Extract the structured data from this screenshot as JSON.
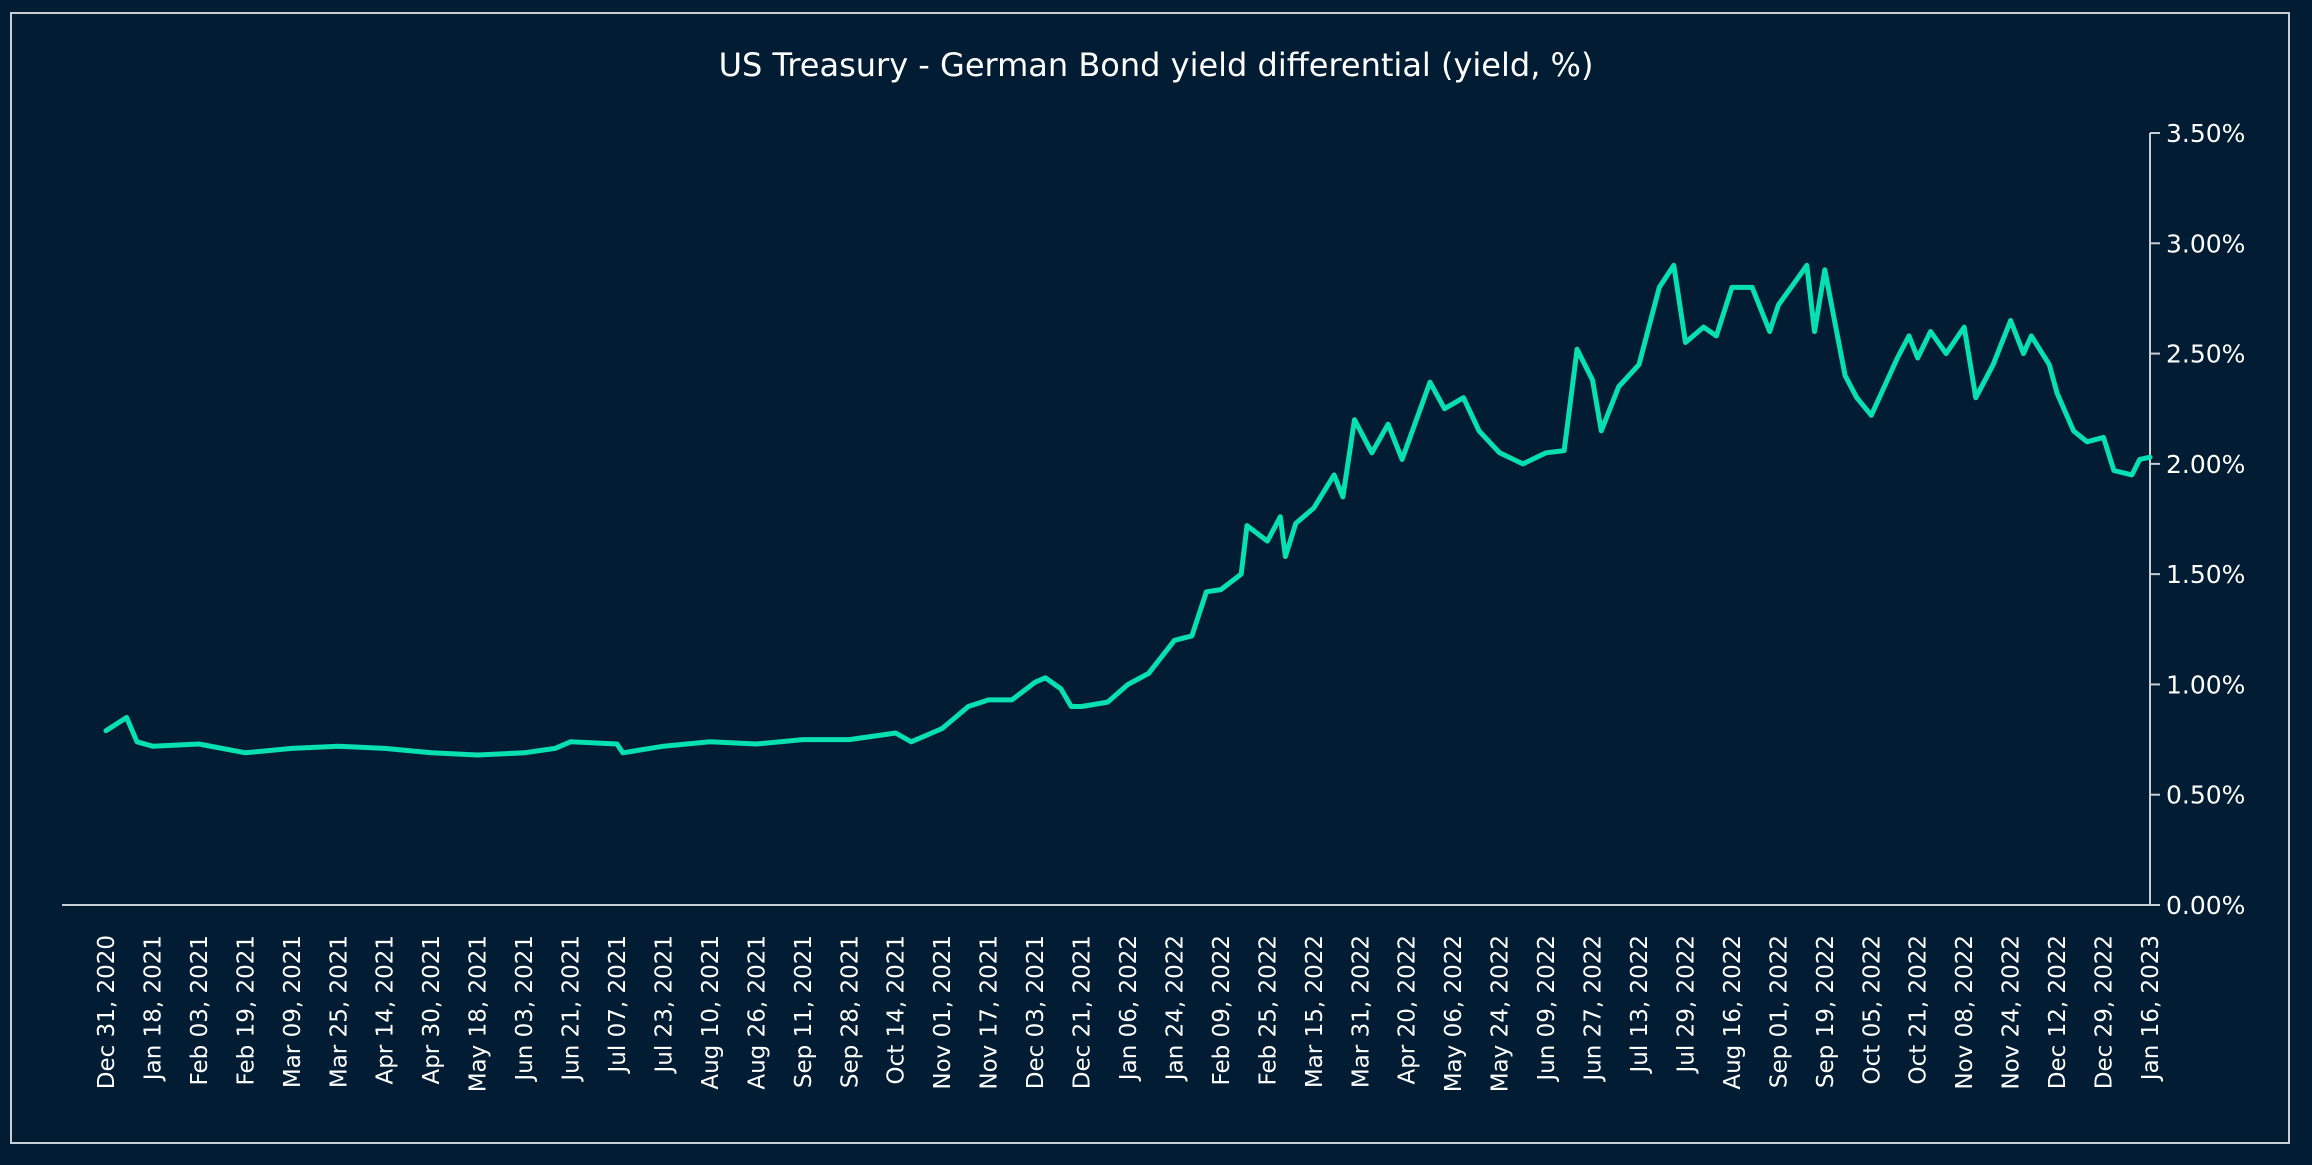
{
  "chart_data": {
    "type": "line",
    "title": "US Treasury - German Bond yield differential (yield, %)",
    "xlabel": "",
    "ylabel": "",
    "ylim": [
      0,
      3.5
    ],
    "y_ticks": [
      "0.00%",
      "0.50%",
      "1.00%",
      "1.50%",
      "2.00%",
      "2.50%",
      "3.00%",
      "3.50%"
    ],
    "y_tick_values": [
      0,
      0.5,
      1,
      1.5,
      2,
      2.5,
      3,
      3.5
    ],
    "y_axis_side": "right",
    "grid": false,
    "legend": "none",
    "colors": {
      "background": "#011c33",
      "line": "#07e0b0",
      "text": "#ffffff",
      "axis": "#c9ced4"
    },
    "x_ticks": [
      "Dec 31, 2020",
      "Jan 18, 2021",
      "Feb 03, 2021",
      "Feb 19, 2021",
      "Mar 09, 2021",
      "Mar 25, 2021",
      "Apr 14, 2021",
      "Apr 30, 2021",
      "May 18, 2021",
      "Jun 03, 2021",
      "Jun 21, 2021",
      "Jul 07, 2021",
      "Jul 23, 2021",
      "Aug 10, 2021",
      "Aug 26, 2021",
      "Sep 11, 2021",
      "Sep 28, 2021",
      "Oct 14, 2021",
      "Nov 01, 2021",
      "Nov 17, 2021",
      "Dec 03, 2021",
      "Dec 21, 2021",
      "Jan 06, 2022",
      "Jan 24, 2022",
      "Feb 09, 2022",
      "Feb 25, 2022",
      "Mar 15, 2022",
      "Mar 31, 2022",
      "Apr 20, 2022",
      "May 06, 2022",
      "May 24, 2022",
      "Jun 09, 2022",
      "Jun 27, 2022",
      "Jul 13, 2022",
      "Jul 29, 2022",
      "Aug 16, 2022",
      "Sep 01, 2022",
      "Sep 19, 2022",
      "Oct 05, 2022",
      "Oct 21, 2022",
      "Nov 08, 2022",
      "Nov 24, 2022",
      "Dec 12, 2022",
      "Dec 29, 2022",
      "Jan 16, 2023"
    ],
    "x_tick_dates": [
      "2020-12-31",
      "2021-01-18",
      "2021-02-03",
      "2021-02-19",
      "2021-03-09",
      "2021-03-25",
      "2021-04-14",
      "2021-04-30",
      "2021-05-18",
      "2021-06-03",
      "2021-06-21",
      "2021-07-07",
      "2021-07-23",
      "2021-08-10",
      "2021-08-26",
      "2021-09-11",
      "2021-09-28",
      "2021-10-14",
      "2021-11-01",
      "2021-11-17",
      "2021-12-03",
      "2021-12-21",
      "2022-01-06",
      "2022-01-24",
      "2022-02-09",
      "2022-02-25",
      "2022-03-15",
      "2022-03-31",
      "2022-04-20",
      "2022-05-06",
      "2022-05-24",
      "2022-06-09",
      "2022-06-27",
      "2022-07-13",
      "2022-07-29",
      "2022-08-16",
      "2022-09-01",
      "2022-09-19",
      "2022-10-05",
      "2022-10-21",
      "2022-11-08",
      "2022-11-24",
      "2022-12-12",
      "2022-12-29",
      "2023-01-16"
    ],
    "series": [
      {
        "x": [
          "2020-12-31",
          "2021-01-08",
          "2021-01-12",
          "2021-01-18",
          "2021-02-03",
          "2021-02-19",
          "2021-03-09",
          "2021-03-25",
          "2021-04-14",
          "2021-04-30",
          "2021-05-18",
          "2021-06-03",
          "2021-06-15",
          "2021-06-21",
          "2021-07-07",
          "2021-07-09",
          "2021-07-23",
          "2021-08-10",
          "2021-08-26",
          "2021-09-11",
          "2021-09-28",
          "2021-10-14",
          "2021-10-20",
          "2021-11-01",
          "2021-11-10",
          "2021-11-17",
          "2021-11-25",
          "2021-12-03",
          "2021-12-07",
          "2021-12-13",
          "2021-12-17",
          "2021-12-21",
          "2021-12-30",
          "2022-01-06",
          "2022-01-14",
          "2022-01-24",
          "2022-01-30",
          "2022-02-04",
          "2022-02-09",
          "2022-02-16",
          "2022-02-18",
          "2022-02-25",
          "2022-03-02",
          "2022-03-04",
          "2022-03-08",
          "2022-03-15",
          "2022-03-22",
          "2022-03-25",
          "2022-03-29",
          "2022-04-05",
          "2022-04-12",
          "2022-04-18",
          "2022-04-28",
          "2022-05-03",
          "2022-05-10",
          "2022-05-16",
          "2022-05-24",
          "2022-06-01",
          "2022-06-09",
          "2022-06-16",
          "2022-06-21",
          "2022-06-27",
          "2022-06-30",
          "2022-07-06",
          "2022-07-13",
          "2022-07-20",
          "2022-07-25",
          "2022-07-29",
          "2022-08-05",
          "2022-08-10",
          "2022-08-16",
          "2022-08-23",
          "2022-08-29",
          "2022-09-01",
          "2022-09-09",
          "2022-09-12",
          "2022-09-15",
          "2022-09-19",
          "2022-09-26",
          "2022-09-30",
          "2022-10-05",
          "2022-10-14",
          "2022-10-18",
          "2022-10-21",
          "2022-10-26",
          "2022-11-01",
          "2022-11-08",
          "2022-11-12",
          "2022-11-18",
          "2022-11-24",
          "2022-11-29",
          "2022-12-02",
          "2022-12-09",
          "2022-12-12",
          "2022-12-18",
          "2022-12-23",
          "2022-12-29",
          "2023-01-02",
          "2023-01-09",
          "2023-01-12",
          "2023-01-16"
        ],
        "values": [
          0.79,
          0.85,
          0.74,
          0.72,
          0.73,
          0.69,
          0.71,
          0.72,
          0.71,
          0.69,
          0.68,
          0.69,
          0.71,
          0.74,
          0.73,
          0.69,
          0.72,
          0.74,
          0.73,
          0.75,
          0.75,
          0.78,
          0.74,
          0.8,
          0.9,
          0.93,
          0.93,
          1.01,
          1.03,
          0.98,
          0.9,
          0.9,
          0.92,
          1.0,
          1.05,
          1.2,
          1.22,
          1.42,
          1.43,
          1.5,
          1.72,
          1.65,
          1.76,
          1.58,
          1.73,
          1.8,
          1.95,
          1.85,
          2.2,
          2.05,
          2.18,
          2.02,
          2.37,
          2.25,
          2.3,
          2.15,
          2.05,
          2.0,
          2.05,
          2.06,
          2.52,
          2.38,
          2.15,
          2.35,
          2.45,
          2.8,
          2.9,
          2.55,
          2.62,
          2.58,
          2.8,
          2.8,
          2.6,
          2.72,
          2.85,
          2.9,
          2.6,
          2.88,
          2.4,
          2.3,
          2.22,
          2.48,
          2.58,
          2.48,
          2.6,
          2.5,
          2.62,
          2.3,
          2.45,
          2.65,
          2.5,
          2.58,
          2.45,
          2.32,
          2.15,
          2.1,
          2.12,
          1.97,
          1.95,
          2.02,
          2.03
        ]
      }
    ]
  }
}
